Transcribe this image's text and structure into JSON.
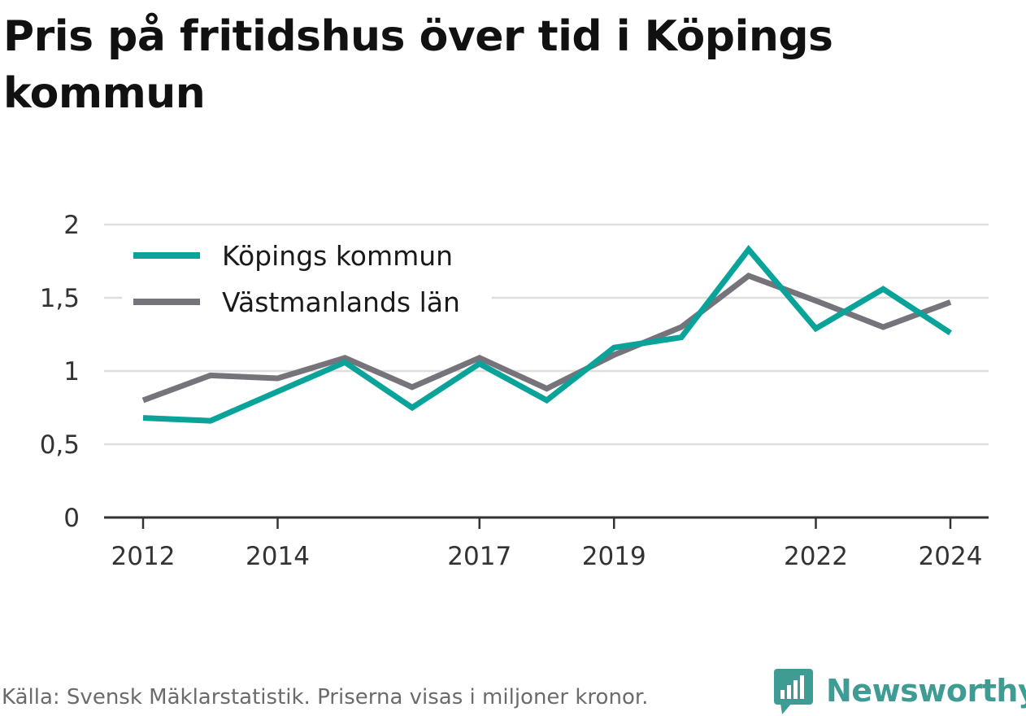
{
  "title": "Pris på fritidshus över tid i Köpings kommun",
  "source": "Källa: Svensk Mäklarstatistik. Priserna visas i miljoner kronor.",
  "brand": {
    "name": "Newsworthy",
    "icon": "newsworthy-bar-chart-speech-bubble-icon",
    "color": "#3f9c94"
  },
  "chart_data": {
    "type": "line",
    "x": [
      2012,
      2013,
      2014,
      2015,
      2016,
      2017,
      2018,
      2019,
      2020,
      2021,
      2022,
      2023,
      2024
    ],
    "x_tick_values": [
      2012,
      2014,
      2017,
      2019,
      2022,
      2024
    ],
    "x_tick_labels": [
      "2012",
      "2014",
      "2017",
      "2019",
      "2022",
      "2024"
    ],
    "y_ticks": [
      0,
      0.5,
      1,
      1.5,
      2
    ],
    "y_tick_labels": [
      "0",
      "0,5",
      "1",
      "1,5",
      "2"
    ],
    "ylim": [
      0,
      2
    ],
    "grid": true,
    "legend_position": "top-left",
    "series": [
      {
        "name": "Köpings kommun",
        "color": "#0aa39a",
        "values": [
          0.68,
          0.66,
          0.86,
          1.06,
          0.75,
          1.05,
          0.8,
          1.16,
          1.23,
          1.83,
          1.29,
          1.56,
          1.26
        ]
      },
      {
        "name": "Västmanlands län",
        "color": "#76737a",
        "values": [
          0.8,
          0.97,
          0.95,
          1.09,
          0.89,
          1.09,
          0.88,
          1.11,
          1.3,
          1.65,
          1.48,
          1.3,
          1.47
        ]
      }
    ]
  }
}
